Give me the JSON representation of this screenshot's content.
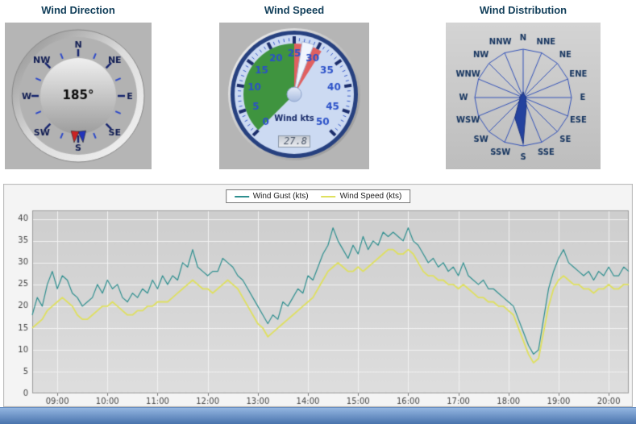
{
  "page": {
    "bg": "#ffffff",
    "footer_color": "#4a74ad"
  },
  "panels": {
    "wind_direction": {
      "title": "Wind Direction",
      "value_deg": 185,
      "value_display": "185°",
      "average_deg": 174,
      "compass_labels": [
        "N",
        "NE",
        "E",
        "SE",
        "S",
        "SW",
        "W",
        "NW"
      ],
      "needle_color": "#cc2222",
      "average_needle_color": "#2233bb"
    },
    "wind_speed": {
      "title": "Wind Speed",
      "unit_label": "Wind kts",
      "value": 27.8,
      "value_display": "27.8",
      "min": 0,
      "max": 50,
      "tick_labels": [
        0,
        5,
        10,
        15,
        20,
        25,
        30,
        35,
        40,
        45,
        50
      ],
      "green_zone": [
        0,
        25
      ],
      "red_zone": [
        25,
        31
      ],
      "green_color": "#3f943f",
      "red_color": "#e06060"
    },
    "wind_distribution": {
      "title": "Wind Distribution",
      "labels": [
        "N",
        "NNE",
        "NE",
        "ENE",
        "E",
        "ESE",
        "SE",
        "SSE",
        "S",
        "SSW",
        "SW",
        "WSW",
        "W",
        "WNW",
        "NW",
        "NNW"
      ],
      "values_pct": [
        12,
        6,
        6,
        5,
        7,
        6,
        8,
        18,
        95,
        45,
        12,
        7,
        8,
        5,
        8,
        6
      ]
    }
  },
  "chart_data": {
    "type": "line",
    "title": "",
    "xlabel": "",
    "ylabel": "",
    "x_start_min": 510,
    "x_step_minutes": 6,
    "x_ticks": [
      "09:00",
      "10:00",
      "11:00",
      "12:00",
      "13:00",
      "14:00",
      "15:00",
      "16:00",
      "17:00",
      "18:00",
      "19:00",
      "20:00"
    ],
    "ylim": [
      0,
      42
    ],
    "y_ticks": [
      0,
      5,
      10,
      15,
      20,
      25,
      30,
      35,
      40
    ],
    "grid": true,
    "legend_position": "top-center",
    "series": [
      {
        "name": "Wind Gust (kts)",
        "color": "#2e8f8f",
        "values": [
          18,
          22,
          20,
          25,
          28,
          24,
          27,
          26,
          23,
          22,
          20,
          21,
          22,
          25,
          23,
          26,
          24,
          25,
          22,
          21,
          23,
          22,
          24,
          23,
          26,
          24,
          27,
          25,
          27,
          26,
          30,
          29,
          33,
          29,
          28,
          27,
          28,
          28,
          31,
          30,
          29,
          27,
          26,
          24,
          22,
          20,
          18,
          16,
          18,
          17,
          21,
          20,
          22,
          24,
          23,
          27,
          26,
          29,
          32,
          34,
          38,
          35,
          33,
          31,
          34,
          32,
          36,
          33,
          35,
          34,
          37,
          36,
          37,
          36,
          35,
          38,
          35,
          34,
          32,
          30,
          31,
          29,
          30,
          28,
          29,
          27,
          30,
          27,
          26,
          25,
          26,
          24,
          24,
          23,
          22,
          21,
          20,
          17,
          14,
          11,
          9,
          10,
          17,
          24,
          28,
          31,
          33,
          30,
          29,
          28,
          27,
          28,
          26,
          28,
          27,
          29,
          27,
          27,
          29,
          28
        ]
      },
      {
        "name": "Wind Speed (kts)",
        "color": "#dfe05e",
        "values": [
          15,
          16,
          17,
          19,
          20,
          21,
          22,
          21,
          20,
          18,
          17,
          17,
          18,
          19,
          20,
          20,
          21,
          20,
          19,
          18,
          18,
          19,
          19,
          20,
          20,
          21,
          21,
          21,
          22,
          23,
          24,
          25,
          26,
          25,
          24,
          24,
          23,
          24,
          25,
          26,
          25,
          24,
          22,
          20,
          18,
          16,
          15,
          13,
          14,
          15,
          16,
          17,
          18,
          19,
          20,
          21,
          22,
          24,
          26,
          28,
          29,
          30,
          29,
          28,
          28,
          29,
          28,
          29,
          30,
          31,
          32,
          33,
          33,
          32,
          32,
          33,
          32,
          30,
          28,
          27,
          27,
          26,
          26,
          25,
          25,
          24,
          25,
          24,
          23,
          22,
          22,
          21,
          21,
          20,
          20,
          19,
          18,
          15,
          12,
          9,
          7,
          8,
          14,
          20,
          24,
          26,
          27,
          26,
          25,
          25,
          24,
          24,
          23,
          24,
          24,
          25,
          24,
          24,
          25,
          25
        ]
      }
    ]
  }
}
